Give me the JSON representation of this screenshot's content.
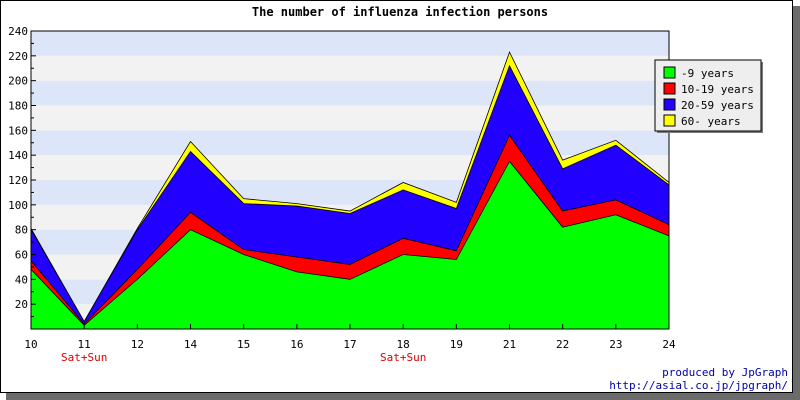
{
  "colors": {
    "background": "#ffffff",
    "band_blue": "#dde6f8",
    "band_gray": "#f2f2f2",
    "credit_text": "#0000aa",
    "weekend_text": "#dd0000"
  },
  "credit": {
    "line1": "produced by JpGraph",
    "line2": "http://asial.co.jp/jpgraph/"
  },
  "chart_data": {
    "type": "area",
    "stacked": true,
    "title": "The number of influenza infection persons",
    "xlabel": "",
    "ylabel": "",
    "x": [
      10,
      11,
      12,
      14,
      15,
      16,
      17,
      18,
      19,
      21,
      22,
      23,
      24
    ],
    "x_ticks": [
      "10",
      "11",
      "12",
      "14",
      "15",
      "16",
      "17",
      "18",
      "19",
      "21",
      "22",
      "23",
      "24"
    ],
    "x_annotations": [
      {
        "category": "11",
        "text": "Sat+Sun"
      },
      {
        "category": "18",
        "text": "Sat+Sun"
      }
    ],
    "ylim": [
      0,
      240
    ],
    "y_ticks": [
      20,
      40,
      60,
      80,
      100,
      120,
      140,
      160,
      180,
      200,
      220,
      240
    ],
    "grid": "alternating horizontal bands",
    "legend_position": "top-right",
    "series": [
      {
        "name": "-9 years",
        "color": "#00ff00",
        "values": [
          48,
          3,
          40,
          80,
          60,
          46,
          40,
          60,
          56,
          135,
          82,
          92,
          75
        ]
      },
      {
        "name": "10-19 years",
        "color": "#ff0000",
        "values": [
          7,
          1,
          8,
          14,
          4,
          12,
          12,
          13,
          7,
          21,
          13,
          12,
          9
        ]
      },
      {
        "name": "20-59 years",
        "color": "#2200ff",
        "values": [
          25,
          2,
          32,
          49,
          37,
          41,
          41,
          39,
          34,
          56,
          34,
          44,
          32
        ]
      },
      {
        "name": "60- years",
        "color": "#ffff00",
        "values": [
          1,
          0,
          1,
          8,
          4,
          2,
          2,
          6,
          5,
          11,
          7,
          4,
          2
        ]
      }
    ]
  }
}
